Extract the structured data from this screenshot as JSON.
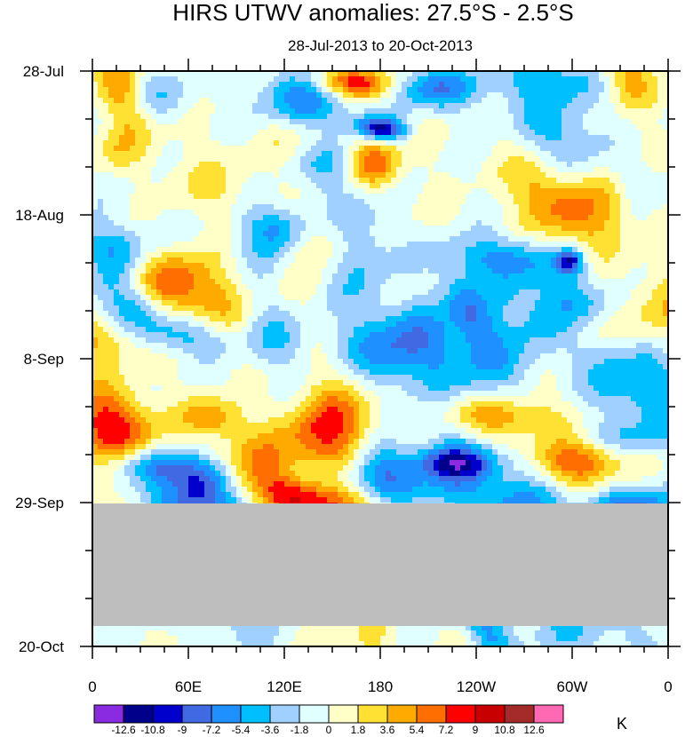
{
  "chart_data": {
    "type": "heatmap",
    "title": "HIRS UTWV anomalies: 27.5°S - 2.5°S",
    "subtitle": "28-Jul-2013 to 20-Oct-2013",
    "x_tick_labels": [
      "0",
      "60E",
      "120E",
      "180",
      "120W",
      "60W",
      "0"
    ],
    "x_range_deg_east": [
      0,
      360
    ],
    "y_tick_labels": [
      "28-Jul",
      "18-Aug",
      "8-Sep",
      "29-Sep",
      "20-Oct"
    ],
    "y_range": [
      "28-Jul-2013",
      "20-Oct-2013"
    ],
    "missing_data_period": [
      "29-Sep-2013",
      "18-Oct-2013"
    ],
    "colorbar": {
      "unit": "K",
      "levels": [
        "-12.6",
        "-10.8",
        "-9",
        "-7.2",
        "-5.4",
        "-3.6",
        "-1.8",
        "0",
        "1.8",
        "3.6",
        "5.4",
        "7.2",
        "9",
        "10.8",
        "12.6"
      ],
      "colors": [
        "#8a2be2",
        "#00008b",
        "#0000cd",
        "#4169e1",
        "#1e90ff",
        "#00bfff",
        "#a0d0ff",
        "#e0ffff",
        "#ffffc8",
        "#ffe133",
        "#ffaa00",
        "#ff6e00",
        "#ff0000",
        "#c80000",
        "#a52a2a",
        "#ff69b4"
      ]
    },
    "missing_color": "#bebebe"
  }
}
